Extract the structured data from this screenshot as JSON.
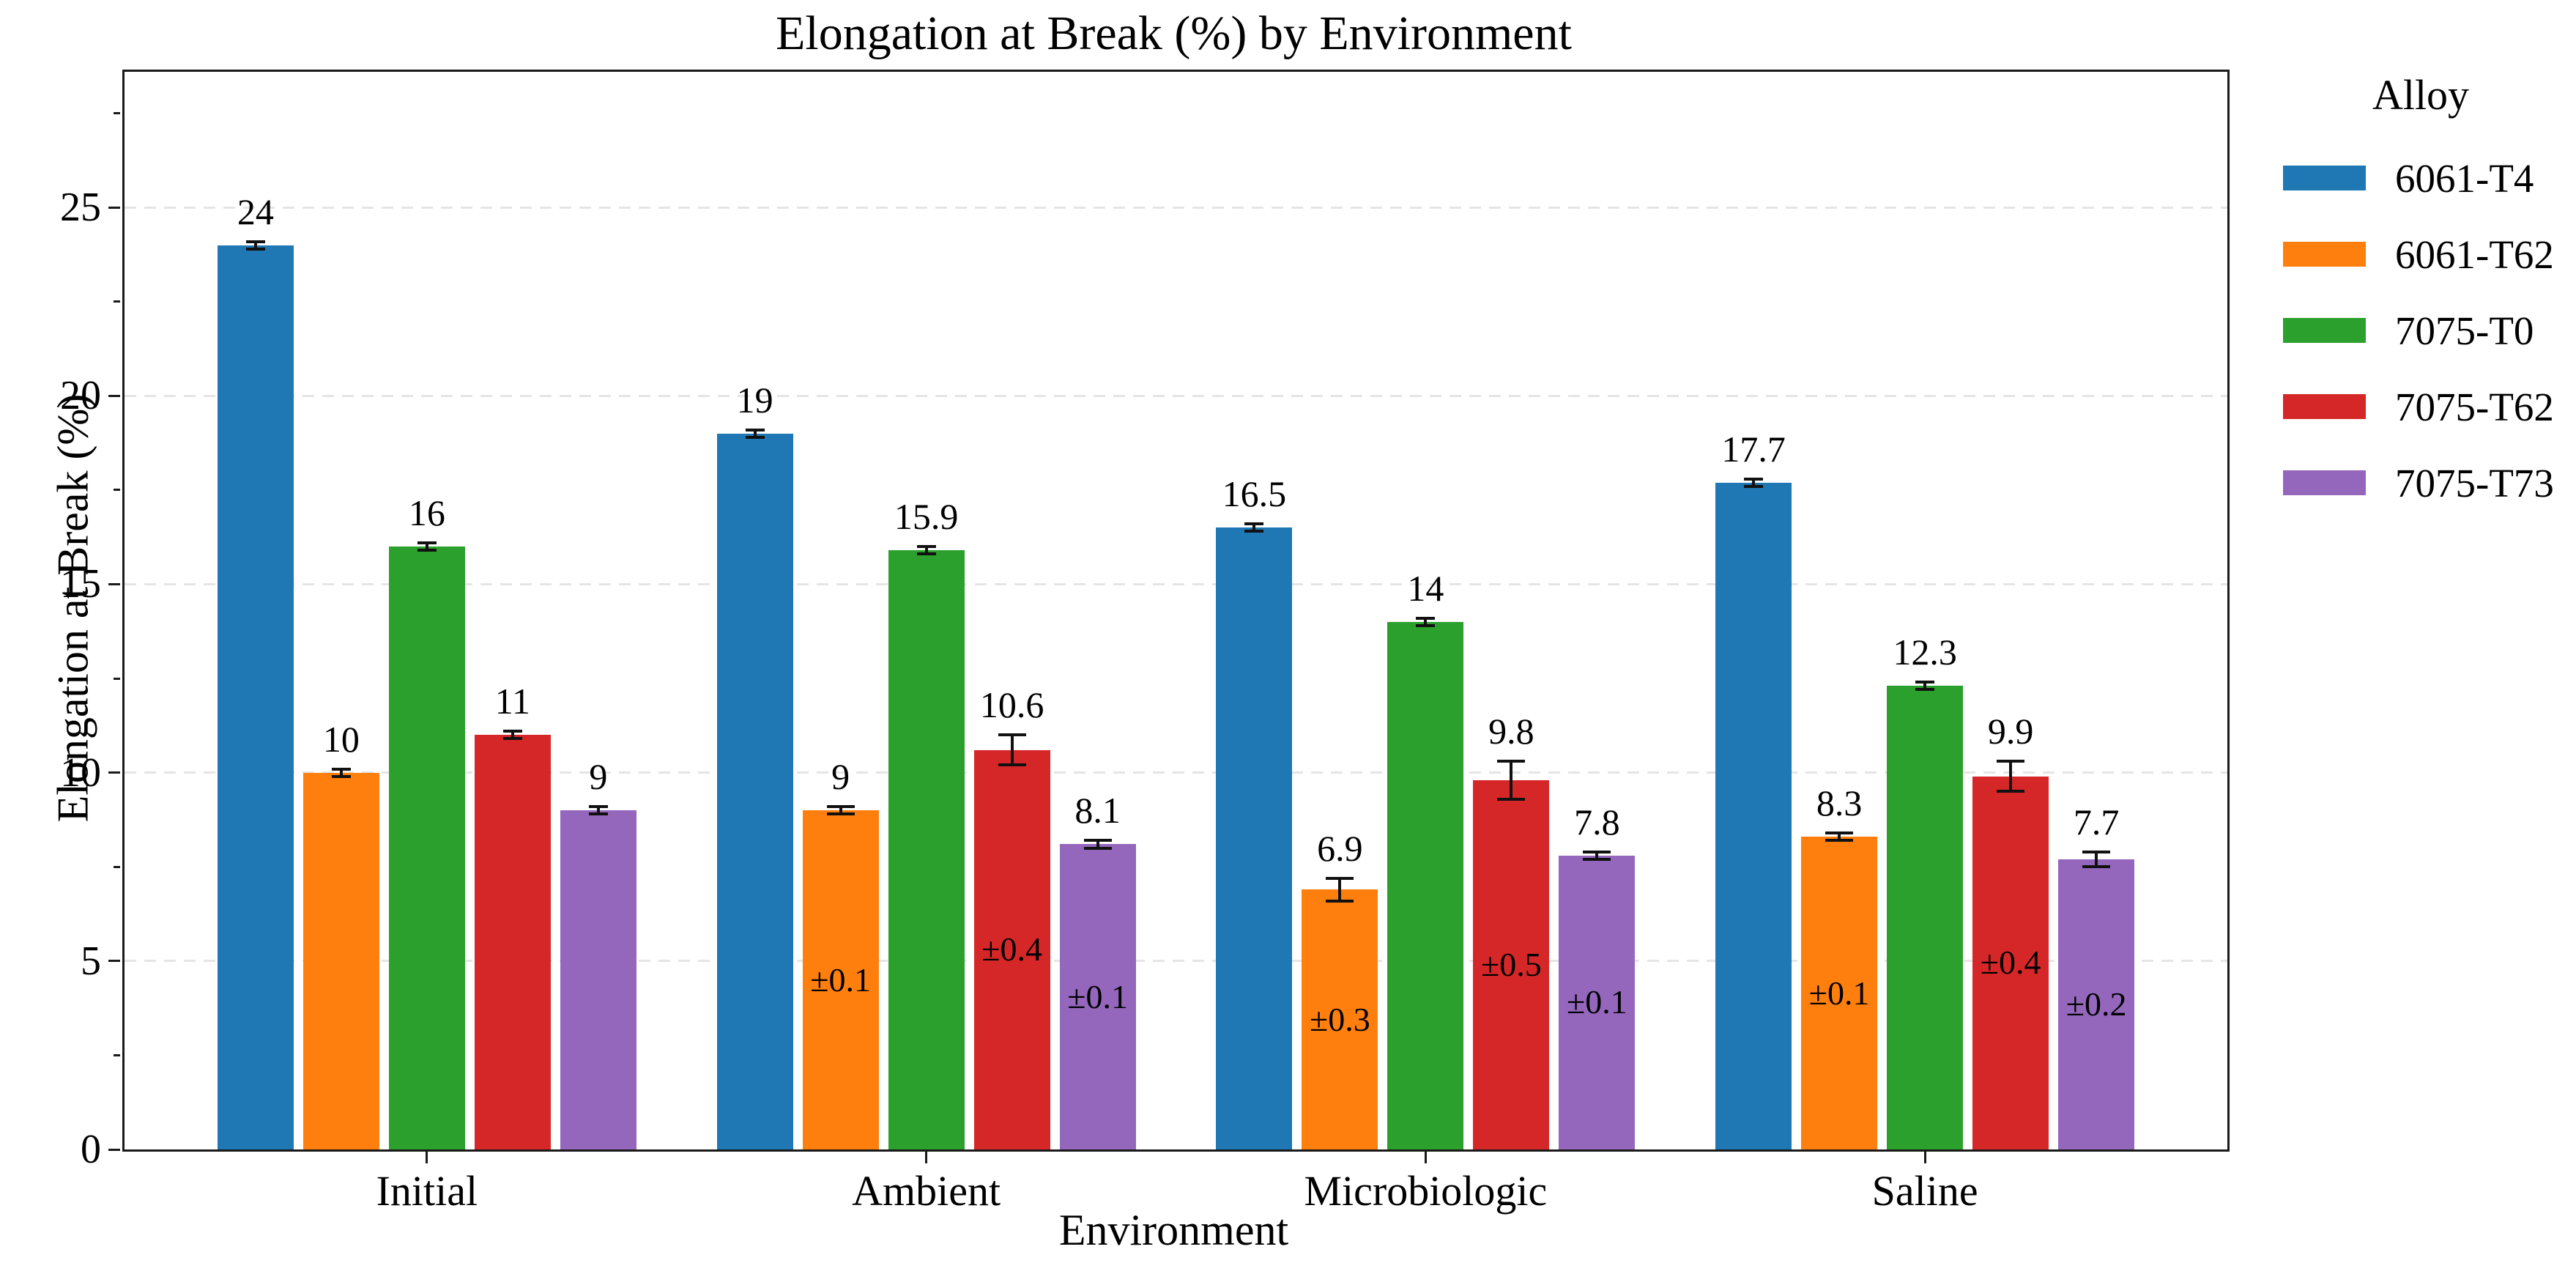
{
  "title": "Elongation at Break (%) by Environment",
  "x_axis": {
    "label": "Environment",
    "tick_labels": [
      "Initial",
      "Ambient",
      "Microbiologic",
      "Saline"
    ]
  },
  "y_axis": {
    "label": "Elongation at Break (%)",
    "tick_labels": [
      "0",
      "5",
      "10",
      "15",
      "20",
      "25"
    ],
    "tick_values": [
      0,
      5,
      10,
      15,
      20,
      25
    ],
    "minor_tick_values": [
      2.5,
      7.5,
      12.5,
      17.5,
      22.5,
      27.5
    ],
    "range": [
      0,
      28.6
    ]
  },
  "legend": {
    "title": "Alloy",
    "entries": [
      {
        "label": "6061-T4",
        "color": "#1f77b4"
      },
      {
        "label": "6061-T62",
        "color": "#ff7f0e"
      },
      {
        "label": "7075-T0",
        "color": "#2ca02c"
      },
      {
        "label": "7075-T62",
        "color": "#d62728"
      },
      {
        "label": "7075-T73",
        "color": "#9467bd"
      }
    ]
  },
  "styles": {
    "grid_color": "#e5e5e5",
    "spine_color": "#1a1a1a",
    "error_bar_color": "#111111"
  },
  "chart_data": {
    "type": "bar",
    "title": "Elongation at Break (%) by Environment",
    "xlabel": "Environment",
    "ylabel": "Elongation at Break (%)",
    "ylim": [
      0,
      28.6
    ],
    "grid": "horizontal-dashed",
    "legend_position": "right",
    "categories": [
      "Initial",
      "Ambient",
      "Microbiologic",
      "Saline"
    ],
    "series": [
      {
        "name": "6061-T4",
        "color": "#1f77b4",
        "values": [
          24,
          19,
          16.5,
          17.7
        ],
        "labels": [
          "24",
          "19",
          "16.5",
          "17.7"
        ],
        "errors": [
          null,
          null,
          null,
          null
        ],
        "error_labels": [
          null,
          null,
          null,
          null
        ]
      },
      {
        "name": "6061-T62",
        "color": "#ff7f0e",
        "values": [
          10,
          9,
          6.9,
          8.3
        ],
        "labels": [
          "10",
          "9",
          "6.9",
          "8.3"
        ],
        "errors": [
          null,
          0.1,
          0.3,
          0.1
        ],
        "error_labels": [
          null,
          "±0.1",
          "±0.3",
          "±0.1"
        ]
      },
      {
        "name": "7075-T0",
        "color": "#2ca02c",
        "values": [
          16,
          15.9,
          14,
          12.3
        ],
        "labels": [
          "16",
          "15.9",
          "14",
          "12.3"
        ],
        "errors": [
          null,
          null,
          null,
          null
        ],
        "error_labels": [
          null,
          null,
          null,
          null
        ]
      },
      {
        "name": "7075-T62",
        "color": "#d62728",
        "values": [
          11,
          10.6,
          9.8,
          9.9
        ],
        "labels": [
          "11",
          "10.6",
          "9.8",
          "9.9"
        ],
        "errors": [
          null,
          0.4,
          0.5,
          0.4
        ],
        "error_labels": [
          null,
          "±0.4",
          "±0.5",
          "±0.4"
        ]
      },
      {
        "name": "7075-T73",
        "color": "#9467bd",
        "values": [
          9,
          8.1,
          7.8,
          7.7
        ],
        "labels": [
          "9",
          "8.1",
          "7.8",
          "7.7"
        ],
        "errors": [
          null,
          0.1,
          0.1,
          0.2
        ],
        "error_labels": [
          null,
          "±0.1",
          "±0.1",
          "±0.2"
        ]
      }
    ]
  }
}
